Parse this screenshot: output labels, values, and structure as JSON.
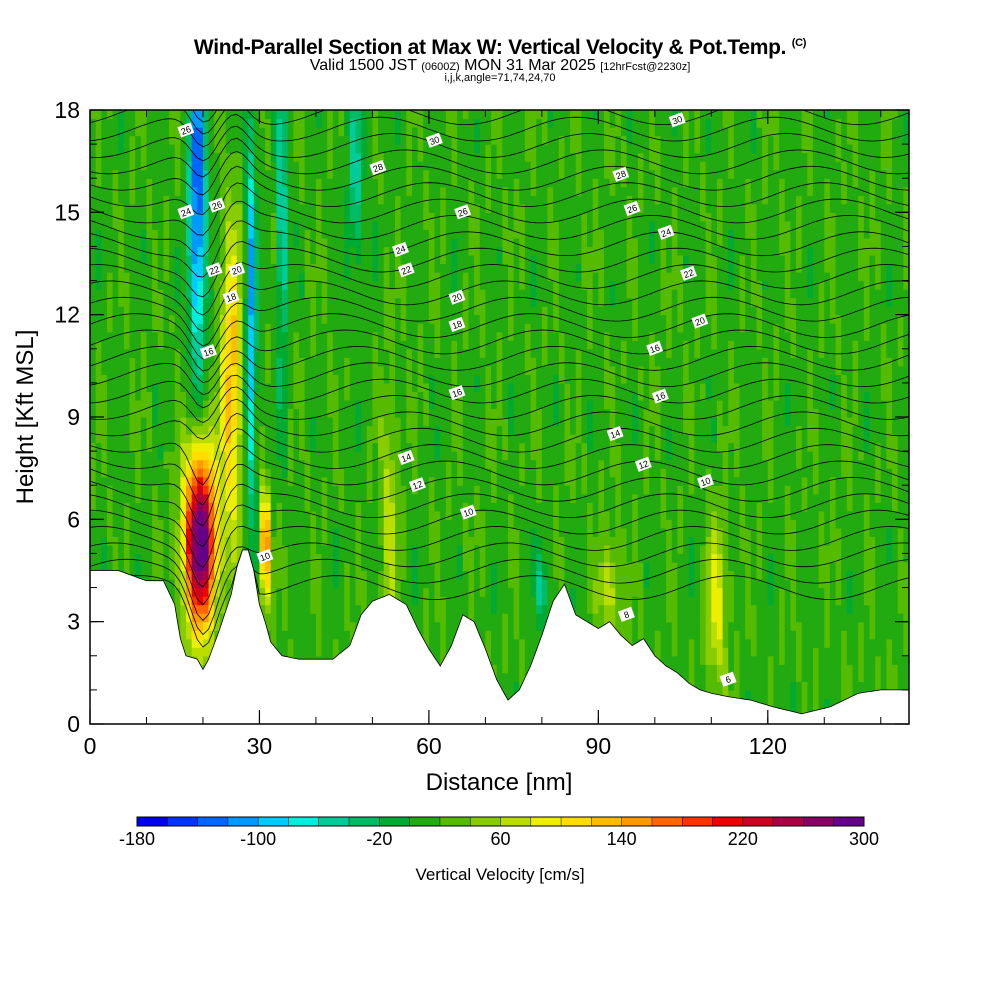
{
  "header": {
    "title": "Wind-Parallel Section at Max W: Vertical Velocity & Pot.Temp.",
    "title_mark": "(C)",
    "valid_prefix": "Valid 1500 JST",
    "valid_utc": "(0600Z)",
    "valid_date": "MON 31 Mar 2025",
    "forecast": "[12hrFcst@2230z]",
    "indices": "i,j,k,angle=71,74,24,70"
  },
  "chart_data": {
    "type": "heatmap",
    "xlabel": "Distance [nm]",
    "ylabel": "Height [Kft MSL]",
    "xlim": [
      0,
      145
    ],
    "ylim": [
      0,
      18
    ],
    "x_ticks": [
      0,
      30,
      60,
      90,
      120
    ],
    "y_ticks": [
      0,
      3,
      6,
      9,
      12,
      15,
      18
    ],
    "x_minor_step": 10,
    "y_minor_step": 1,
    "colorbar": {
      "title": "Vertical Velocity [cm/s]",
      "min": -180,
      "max": 300,
      "step": 20,
      "tick_labels": [
        "-180",
        "-100",
        "-20",
        "60",
        "140",
        "220",
        "300"
      ],
      "tick_values": [
        -180,
        -100,
        -20,
        60,
        140,
        220,
        300
      ],
      "colors": [
        "#0000ee",
        "#0033ff",
        "#0066ff",
        "#0099ff",
        "#00ccff",
        "#00eedd",
        "#00cc99",
        "#00bb66",
        "#00aa33",
        "#22aa11",
        "#55bb00",
        "#88cc00",
        "#bbdd00",
        "#eeee00",
        "#ffdd00",
        "#ffbb00",
        "#ff9900",
        "#ff6600",
        "#ff3300",
        "#ee0000",
        "#cc0022",
        "#aa0044",
        "#880066",
        "#660088"
      ]
    },
    "terrain_kft": [
      [
        0,
        4.5
      ],
      [
        5,
        4.5
      ],
      [
        10,
        4.2
      ],
      [
        13,
        4.2
      ],
      [
        15,
        3.5
      ],
      [
        16,
        2.5
      ],
      [
        17,
        2.0
      ],
      [
        19,
        1.9
      ],
      [
        20,
        1.6
      ],
      [
        21,
        1.9
      ],
      [
        23,
        2.8
      ],
      [
        25,
        3.8
      ],
      [
        26,
        4.6
      ],
      [
        27,
        5.1
      ],
      [
        28,
        5.1
      ],
      [
        29,
        4.5
      ],
      [
        30,
        3.5
      ],
      [
        31,
        3.0
      ],
      [
        32,
        2.4
      ],
      [
        34,
        2.0
      ],
      [
        37,
        1.9
      ],
      [
        43,
        1.9
      ],
      [
        46,
        2.3
      ],
      [
        48,
        3.2
      ],
      [
        50,
        3.6
      ],
      [
        53,
        3.8
      ],
      [
        56,
        3.5
      ],
      [
        58,
        2.8
      ],
      [
        60,
        2.2
      ],
      [
        62,
        1.7
      ],
      [
        64,
        2.3
      ],
      [
        66,
        3.2
      ],
      [
        68,
        3.0
      ],
      [
        70,
        2.2
      ],
      [
        72,
        1.3
      ],
      [
        74,
        0.7
      ],
      [
        76,
        1.0
      ],
      [
        78,
        1.7
      ],
      [
        80,
        2.6
      ],
      [
        82,
        3.6
      ],
      [
        84,
        4.1
      ],
      [
        86,
        3.2
      ],
      [
        88,
        3.0
      ],
      [
        90,
        2.8
      ],
      [
        92,
        3.0
      ],
      [
        94,
        2.6
      ],
      [
        96,
        2.3
      ],
      [
        98,
        2.5
      ],
      [
        100,
        2.0
      ],
      [
        102,
        1.7
      ],
      [
        104,
        1.5
      ],
      [
        106,
        1.2
      ],
      [
        108,
        1.0
      ],
      [
        110,
        0.9
      ],
      [
        113,
        0.8
      ],
      [
        117,
        0.7
      ],
      [
        121,
        0.5
      ],
      [
        126,
        0.3
      ],
      [
        131,
        0.5
      ],
      [
        136,
        0.9
      ],
      [
        140,
        1.0
      ],
      [
        145,
        1.0
      ]
    ],
    "updrafts": [
      {
        "x": 19.5,
        "z": 5.4,
        "w": 300,
        "sx": 2.8,
        "sz": 2.6
      },
      {
        "x": 31.0,
        "z": 5.2,
        "w": 190,
        "sx": 0.8,
        "sz": 1.5
      },
      {
        "x": 25.0,
        "z": 10.0,
        "w": 120,
        "sx": 1.8,
        "sz": 4.5
      },
      {
        "x": 53.0,
        "z": 6.0,
        "w": 55,
        "sx": 1.5,
        "sz": 3.5
      },
      {
        "x": 92.0,
        "z": 4.0,
        "w": 60,
        "sx": 2.0,
        "sz": 1.5
      },
      {
        "x": 111.0,
        "z": 3.5,
        "w": 70,
        "sx": 1.8,
        "sz": 2.5
      }
    ],
    "downdrafts": [
      {
        "x": 19.0,
        "z": 15.5,
        "w": -160,
        "sx": 1.5,
        "sz": 5.0
      },
      {
        "x": 28.5,
        "z": 12.0,
        "w": -120,
        "sx": 0.9,
        "sz": 6.0
      },
      {
        "x": 34.0,
        "z": 15.0,
        "w": -80,
        "sx": 1.0,
        "sz": 5.0
      },
      {
        "x": 47.0,
        "z": 16.0,
        "w": -60,
        "sx": 1.5,
        "sz": 3.0
      },
      {
        "x": 80.0,
        "z": 4.0,
        "w": -60,
        "sx": 1.2,
        "sz": 1.0
      }
    ],
    "isentrope_labels": [
      {
        "x": 17.0,
        "z": 17.4,
        "t": "26"
      },
      {
        "x": 61.0,
        "z": 17.1,
        "t": "30"
      },
      {
        "x": 104.0,
        "z": 17.7,
        "t": "30"
      },
      {
        "x": 51.0,
        "z": 16.3,
        "t": "28"
      },
      {
        "x": 94.0,
        "z": 16.1,
        "t": "28"
      },
      {
        "x": 17.0,
        "z": 15.0,
        "t": "24"
      },
      {
        "x": 22.5,
        "z": 15.2,
        "t": "26"
      },
      {
        "x": 66.0,
        "z": 15.0,
        "t": "26"
      },
      {
        "x": 96.0,
        "z": 15.1,
        "t": "26"
      },
      {
        "x": 55.0,
        "z": 13.9,
        "t": "24"
      },
      {
        "x": 102.0,
        "z": 14.4,
        "t": "24"
      },
      {
        "x": 22.0,
        "z": 13.3,
        "t": "22"
      },
      {
        "x": 26.0,
        "z": 13.3,
        "t": "20"
      },
      {
        "x": 56.0,
        "z": 13.3,
        "t": "22"
      },
      {
        "x": 106.0,
        "z": 13.2,
        "t": "22"
      },
      {
        "x": 25.0,
        "z": 12.5,
        "t": "18"
      },
      {
        "x": 65.0,
        "z": 12.5,
        "t": "20"
      },
      {
        "x": 108.0,
        "z": 11.8,
        "t": "20"
      },
      {
        "x": 65.0,
        "z": 11.7,
        "t": "18"
      },
      {
        "x": 21.0,
        "z": 10.9,
        "t": "16"
      },
      {
        "x": 100.0,
        "z": 11.0,
        "t": "16"
      },
      {
        "x": 65.0,
        "z": 9.7,
        "t": "16"
      },
      {
        "x": 101.0,
        "z": 9.6,
        "t": "16"
      },
      {
        "x": 93.0,
        "z": 8.5,
        "t": "14"
      },
      {
        "x": 56.0,
        "z": 7.8,
        "t": "14"
      },
      {
        "x": 98.0,
        "z": 7.6,
        "t": "12"
      },
      {
        "x": 58.0,
        "z": 7.0,
        "t": "12"
      },
      {
        "x": 109.0,
        "z": 7.1,
        "t": "10"
      },
      {
        "x": 67.0,
        "z": 6.2,
        "t": "10"
      },
      {
        "x": 31.0,
        "z": 4.9,
        "t": "10"
      },
      {
        "x": 95.0,
        "z": 3.2,
        "t": "8"
      },
      {
        "x": 113.0,
        "z": 1.3,
        "t": "6"
      }
    ]
  }
}
